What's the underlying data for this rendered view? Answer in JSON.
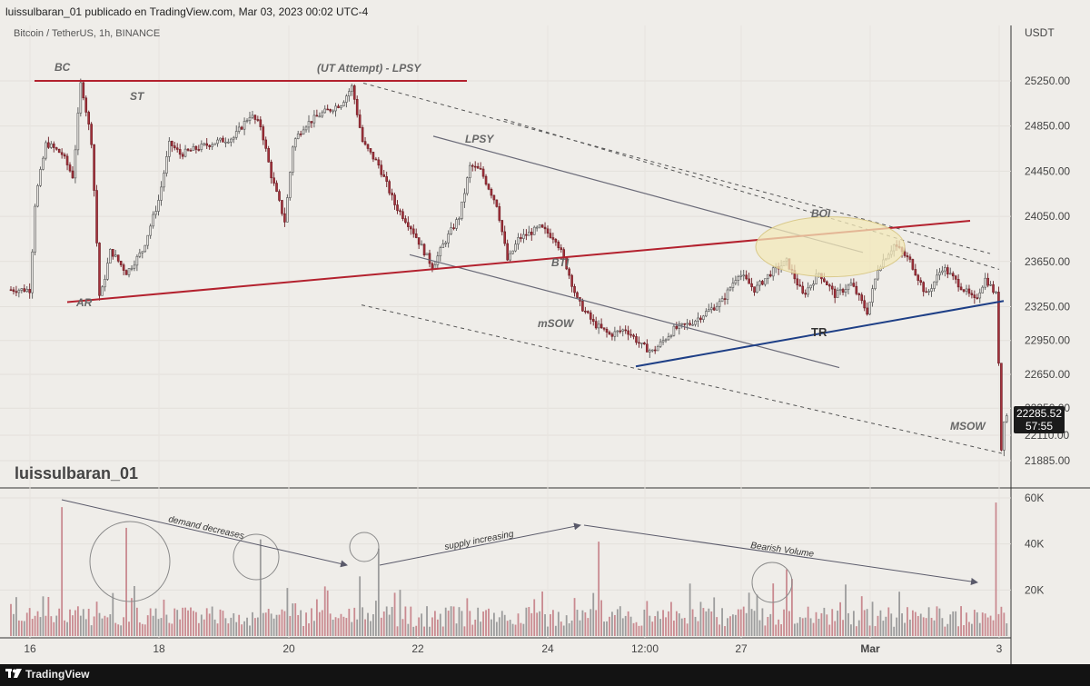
{
  "header": {
    "publish_line": "luissulbaran_01 publicado en TradingView.com, Mar 03, 2023 00:02 UTC-4",
    "symbol_line": "Bitcoin / TetherUS, 1h, BINANCE",
    "watermark": "luissulbaran_01",
    "currency": "USDT"
  },
  "price_tag": {
    "price": "22285.52",
    "countdown": "57:55"
  },
  "footer": {
    "brand": "TradingView"
  },
  "colors": {
    "background": "#efede9",
    "up": "#8e8e8e",
    "down": "#a4313b",
    "resistance": "#b3212e",
    "tr_line": "#1e3f86",
    "boi_fill": "#f3e8b8"
  },
  "chart_data": [
    {
      "type": "candlestick",
      "title": "Bitcoin / TetherUS, 1h, BINANCE",
      "x_ticks": [
        "16",
        "18",
        "20",
        "22",
        "24",
        "12:00",
        "27",
        "Mar",
        "3"
      ],
      "y_ticks": [
        25250,
        24850,
        24450,
        24050,
        23650,
        23250,
        22950,
        22650,
        22350,
        22110,
        21885
      ],
      "ylim": [
        21750,
        25550
      ],
      "grid": true,
      "price_path": [
        [
          "16 00:00",
          23400
        ],
        [
          "16 02:00",
          24200
        ],
        [
          "16 06:00",
          24700
        ],
        [
          "16 12:00",
          24600
        ],
        [
          "16 16:00",
          24400
        ],
        [
          "16 19:00",
          25250
        ],
        [
          "16 23:00",
          24700
        ],
        [
          "17 02:00",
          23300
        ],
        [
          "17 06:00",
          23750
        ],
        [
          "17 12:00",
          23550
        ],
        [
          "17 18:00",
          23750
        ],
        [
          "18 00:00",
          24200
        ],
        [
          "18 04:00",
          24700
        ],
        [
          "18 08:00",
          24600
        ],
        [
          "18 14:00",
          24650
        ],
        [
          "18 20:00",
          24700
        ],
        [
          "19 04:00",
          24750
        ],
        [
          "19 10:00",
          24950
        ],
        [
          "19 14:00",
          24850
        ],
        [
          "19 18:00",
          24400
        ],
        [
          "19 23:00",
          24000
        ],
        [
          "20 02:00",
          24700
        ],
        [
          "20 06:00",
          24850
        ],
        [
          "20 12:00",
          24950
        ],
        [
          "20 20:00",
          25050
        ],
        [
          "21 00:00",
          25200
        ],
        [
          "21 04:00",
          24700
        ],
        [
          "21 10:00",
          24500
        ],
        [
          "21 16:00",
          24150
        ],
        [
          "21 22:00",
          23950
        ],
        [
          "22 06:00",
          23600
        ],
        [
          "22 10:00",
          23800
        ],
        [
          "22 16:00",
          24050
        ],
        [
          "22 20:00",
          24500
        ],
        [
          "23 00:00",
          24450
        ],
        [
          "23 06:00",
          24150
        ],
        [
          "23 10:00",
          23650
        ],
        [
          "23 14:00",
          23850
        ],
        [
          "23 22:00",
          23950
        ],
        [
          "24 04:00",
          23850
        ],
        [
          "24 08:00",
          23600
        ],
        [
          "24 12:00",
          23300
        ],
        [
          "24 18:00",
          23100
        ],
        [
          "25 00:00",
          23000
        ],
        [
          "25 06:00",
          23050
        ],
        [
          "25 12:00",
          22900
        ],
        [
          "25 16:00",
          22850
        ],
        [
          "26 00:00",
          23050
        ],
        [
          "26 06:00",
          23100
        ],
        [
          "26 12:00",
          23200
        ],
        [
          "26 18:00",
          23300
        ],
        [
          "27 00:00",
          23550
        ],
        [
          "27 06:00",
          23400
        ],
        [
          "27 12:00",
          23550
        ],
        [
          "27 18:00",
          23650
        ],
        [
          "28 00:00",
          23350
        ],
        [
          "28 06:00",
          23550
        ],
        [
          "28 12:00",
          23350
        ],
        [
          "28 18:00",
          23450
        ],
        [
          "01 00:00",
          23200
        ],
        [
          "01 04:00",
          23600
        ],
        [
          "01 10:00",
          23800
        ],
        [
          "01 16:00",
          23650
        ],
        [
          "01 22:00",
          23350
        ],
        [
          "02 04:00",
          23600
        ],
        [
          "02 10:00",
          23450
        ],
        [
          "02 16:00",
          23300
        ],
        [
          "02 20:00",
          23500
        ],
        [
          "03 00:00",
          23350
        ],
        [
          "03 01:00",
          22700
        ],
        [
          "03 02:00",
          21900
        ],
        [
          "03 03:00",
          22300
        ],
        [
          "03 04:00",
          22280
        ]
      ],
      "annotations": [
        "BC",
        "ST",
        "(UT Attempt) - LPSY",
        "AR",
        "LPSY",
        "BTI",
        "mSOW",
        "BOI",
        "TR",
        "MSOW"
      ],
      "xlabel": "",
      "ylabel": ""
    },
    {
      "type": "bar",
      "title": "",
      "y_ticks": [
        "60K",
        "40K",
        "20K"
      ],
      "ylim": [
        0,
        62000
      ],
      "grid": true,
      "spikes": [
        [
          "16 12:00",
          56000
        ],
        [
          "17 12:00",
          47000
        ],
        [
          "19 14:00",
          42000
        ],
        [
          "21 10:00",
          38000
        ],
        [
          "24 20:00",
          41000
        ],
        [
          "27 18:00",
          29000
        ],
        [
          "03 00:00",
          58000
        ]
      ],
      "annotations": [
        "demand decreases",
        "supply increasing",
        "Bearish Volume"
      ],
      "xlabel": "",
      "ylabel": ""
    }
  ]
}
